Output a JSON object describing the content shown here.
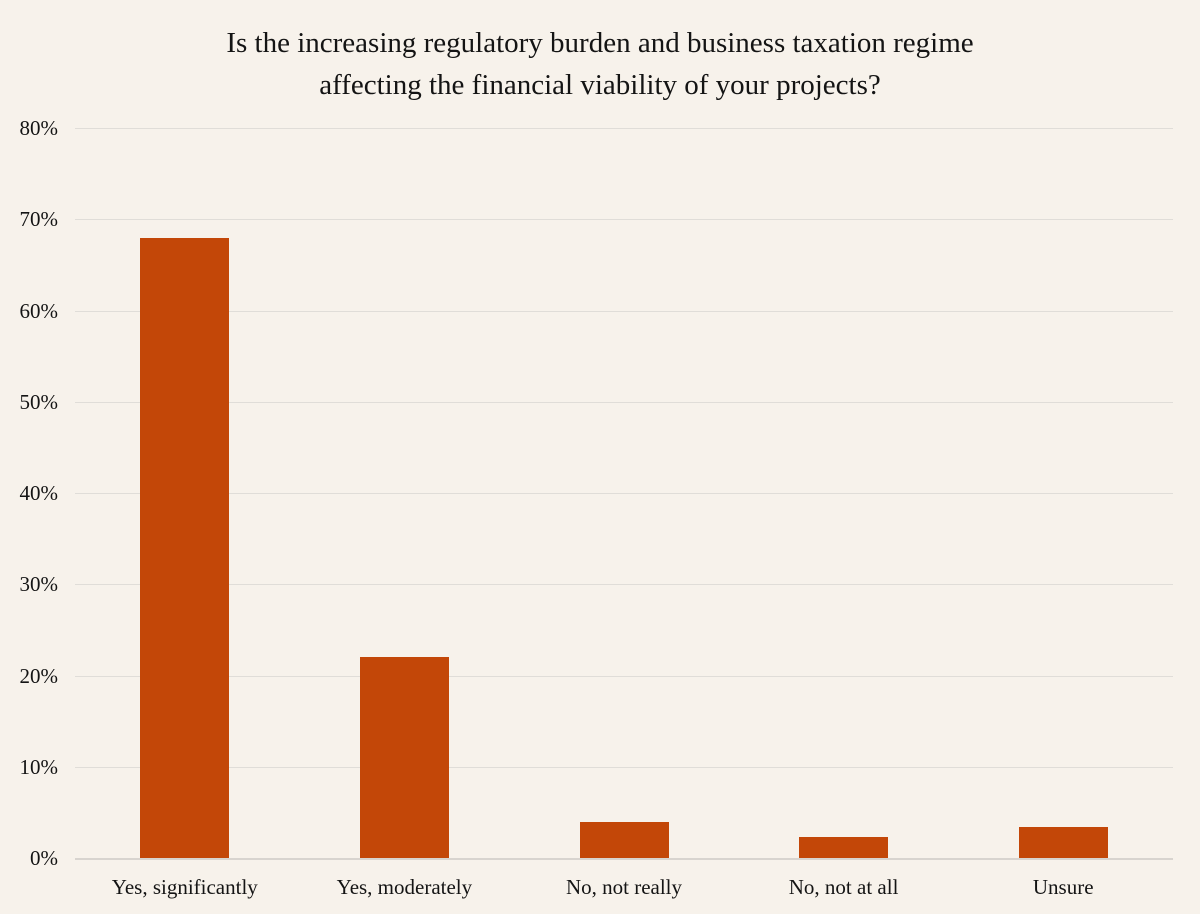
{
  "chart_data": {
    "type": "bar",
    "title": "Is the increasing regulatory burden and business taxation regime affecting the financial viability of your projects?",
    "title_lines": [
      "Is the increasing regulatory burden and business taxation regime",
      "affecting the financial viability of your projects?"
    ],
    "categories": [
      "Yes, significantly",
      "Yes, moderately",
      "No, not really",
      "No, not at all",
      "Unsure"
    ],
    "values": [
      68,
      22,
      4,
      2.3,
      3.4
    ],
    "xlabel": "",
    "ylabel": "",
    "ylim": [
      0,
      80
    ],
    "ytick_step": 10,
    "ytick_labels": [
      "0%",
      "10%",
      "20%",
      "30%",
      "40%",
      "50%",
      "60%",
      "70%",
      "80%"
    ],
    "grid": true,
    "legend_position": "none",
    "colors": {
      "bar": "#C34708",
      "background": "#F7F2EB",
      "gridline": "#E0DDD8",
      "axis_line": "#D8D4CF",
      "text": "#141414"
    }
  }
}
